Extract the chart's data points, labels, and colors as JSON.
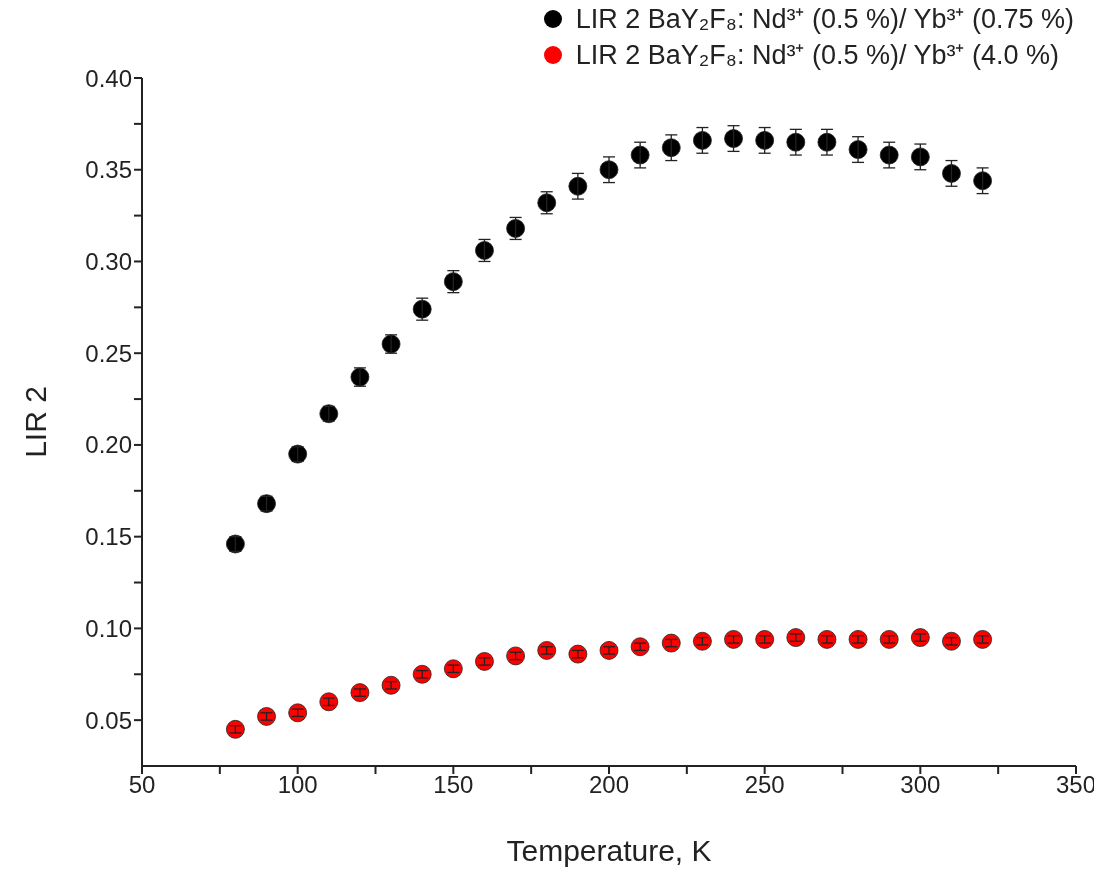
{
  "chart_data": {
    "type": "scatter",
    "xlabel": "Temperature, K",
    "ylabel": "LIR 2",
    "x": [
      80,
      90,
      100,
      110,
      120,
      130,
      140,
      150,
      160,
      170,
      180,
      190,
      200,
      210,
      220,
      230,
      240,
      250,
      260,
      270,
      280,
      290,
      300,
      310,
      320
    ],
    "series": [
      {
        "name": "LIR 2 BaY₂F₈: Nd³⁺ (0.5 %)/ Yb³⁺ (0.75 %)",
        "color": "#000000",
        "values": [
          0.146,
          0.168,
          0.195,
          0.217,
          0.237,
          0.255,
          0.274,
          0.289,
          0.306,
          0.318,
          0.332,
          0.341,
          0.35,
          0.358,
          0.362,
          0.366,
          0.367,
          0.366,
          0.365,
          0.365,
          0.361,
          0.358,
          0.357,
          0.348,
          0.344
        ],
        "errors": [
          0.004,
          0.004,
          0.004,
          0.004,
          0.005,
          0.005,
          0.006,
          0.006,
          0.006,
          0.006,
          0.006,
          0.007,
          0.007,
          0.007,
          0.007,
          0.007,
          0.007,
          0.007,
          0.007,
          0.007,
          0.007,
          0.007,
          0.007,
          0.007,
          0.007
        ]
      },
      {
        "name": "LIR 2 BaY₂F₈: Nd³⁺ (0.5 %)/ Yb³⁺ (4.0 %)",
        "color": "#ff0000",
        "values": [
          0.045,
          0.052,
          0.054,
          0.06,
          0.065,
          0.069,
          0.075,
          0.078,
          0.082,
          0.085,
          0.088,
          0.086,
          0.088,
          0.09,
          0.092,
          0.093,
          0.094,
          0.094,
          0.095,
          0.094,
          0.094,
          0.094,
          0.095,
          0.093,
          0.094
        ],
        "errors": [
          0.002,
          0.002,
          0.002,
          0.002,
          0.002,
          0.002,
          0.002,
          0.002,
          0.002,
          0.002,
          0.002,
          0.002,
          0.002,
          0.002,
          0.002,
          0.002,
          0.002,
          0.002,
          0.002,
          0.002,
          0.002,
          0.002,
          0.002,
          0.002,
          0.002
        ]
      }
    ],
    "xlim": [
      50,
      350
    ],
    "xticks": [
      50,
      {
        "value": 75,
        "label": null
      },
      100,
      {
        "value": 125,
        "label": null
      },
      150,
      {
        "value": 175,
        "label": null
      },
      200,
      {
        "value": 225,
        "label": null
      },
      250,
      {
        "value": 275,
        "label": null
      },
      300,
      {
        "value": 325,
        "label": null
      },
      350
    ],
    "ylim": [
      0.025,
      0.4
    ],
    "yticks": [
      {
        "value": 0.05,
        "label": "0.05"
      },
      {
        "value": 0.075,
        "label": null
      },
      {
        "value": 0.1,
        "label": "0.10"
      },
      {
        "value": 0.125,
        "label": null
      },
      {
        "value": 0.15,
        "label": "0.15"
      },
      {
        "value": 0.175,
        "label": null
      },
      {
        "value": 0.2,
        "label": "0.20"
      },
      {
        "value": 0.225,
        "label": null
      },
      {
        "value": 0.25,
        "label": "0.25"
      },
      {
        "value": 0.275,
        "label": null
      },
      {
        "value": 0.3,
        "label": "0.30"
      },
      {
        "value": 0.325,
        "label": null
      },
      {
        "value": 0.35,
        "label": "0.35"
      },
      {
        "value": 0.375,
        "label": null
      },
      {
        "value": 0.4,
        "label": "0.40"
      }
    ],
    "grid": false,
    "legend": "top right",
    "marker": "circle"
  }
}
